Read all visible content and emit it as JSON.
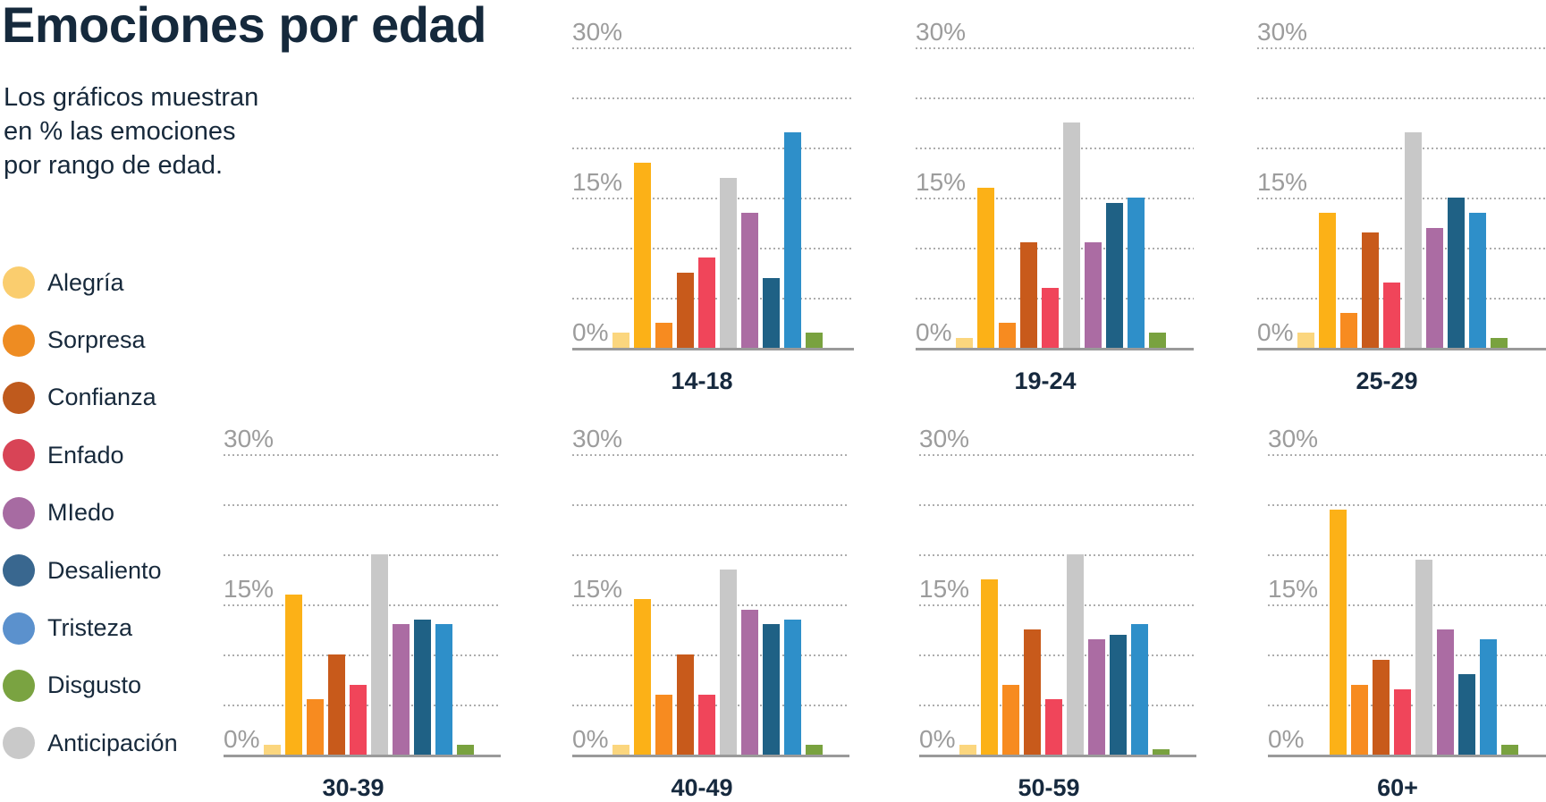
{
  "title": "Emociones por edad",
  "subtitle_lines": [
    "Los gráficos muestran",
    "en % las emociones",
    "por rango de edad."
  ],
  "legend": [
    {
      "label": "Alegría",
      "color": "#FACD6E"
    },
    {
      "label": "Sorpresa",
      "color": "#EE8C22"
    },
    {
      "label": "Confianza",
      "color": "#BF5A1D"
    },
    {
      "label": "Enfado",
      "color": "#D84456"
    },
    {
      "label": "MIedo",
      "color": "#A76BA2"
    },
    {
      "label": "Desaliento",
      "color": "#39678F"
    },
    {
      "label": "Tristeza",
      "color": "#5B91CD"
    },
    {
      "label": "Disgusto",
      "color": "#7AA341"
    },
    {
      "label": "Anticipación",
      "color": "#C9C9C9"
    }
  ],
  "chart_data": {
    "type": "bar",
    "title": "Emociones por edad",
    "subtitle": "Los gráficos muestran en % las emociones por rango de edad.",
    "unit": "%",
    "ylim": [
      0,
      30
    ],
    "gridline_step": 5,
    "grid_style": "dotted",
    "yticks": [
      {
        "value": 30,
        "label": "30%"
      },
      {
        "value": 15,
        "label": "15%"
      },
      {
        "value": 0,
        "label": "0%"
      }
    ],
    "categories": [
      "14-18",
      "19-24",
      "25-29",
      "30-39",
      "40-49",
      "50-59",
      "60+"
    ],
    "series": [
      {
        "name": "Alegría",
        "in_legend": true,
        "color": "#FBD67E",
        "values": [
          1.5,
          1,
          1.5,
          1,
          1,
          1,
          0
        ]
      },
      {
        "name": "unlabeled-amber",
        "in_legend": false,
        "color": "#FCB117",
        "values": [
          18.5,
          16,
          13.5,
          16,
          15.5,
          17.5,
          24.5
        ]
      },
      {
        "name": "Sorpresa",
        "in_legend": true,
        "color": "#F78B20",
        "values": [
          2.5,
          2.5,
          3.5,
          5.5,
          6,
          7,
          7
        ]
      },
      {
        "name": "Confianza",
        "in_legend": true,
        "color": "#C85A1B",
        "values": [
          7.5,
          10.5,
          11.5,
          10,
          10,
          12.5,
          9.5
        ]
      },
      {
        "name": "Enfado",
        "in_legend": true,
        "color": "#F0455A",
        "values": [
          9,
          6,
          6.5,
          7,
          6,
          5.5,
          6.5
        ]
      },
      {
        "name": "Anticipación",
        "in_legend": true,
        "color": "#C8C8C8",
        "values": [
          17,
          22.5,
          21.5,
          20,
          18.5,
          20,
          19.5
        ]
      },
      {
        "name": "MIedo",
        "in_legend": true,
        "color": "#AB6CA3",
        "values": [
          13.5,
          10.5,
          12,
          13,
          14.5,
          11.5,
          12.5
        ]
      },
      {
        "name": "Desaliento",
        "in_legend": true,
        "color": "#1F6185",
        "values": [
          7,
          14.5,
          15,
          13.5,
          13,
          12,
          8
        ]
      },
      {
        "name": "Tristeza",
        "in_legend": true,
        "color": "#2E8FC9",
        "values": [
          21.5,
          15,
          13.5,
          13,
          13.5,
          13,
          11.5
        ]
      },
      {
        "name": "Disgusto",
        "in_legend": true,
        "color": "#79A23F",
        "values": [
          1.5,
          1.5,
          1,
          1,
          1,
          0.5,
          1
        ]
      }
    ],
    "legend_position": "left",
    "colors": {
      "background": "#FFFFFF",
      "text_dark": "#16293E",
      "tick_label": "#9C9C9C",
      "gridline": "#ADADAD",
      "axis": "#9A9A9A"
    }
  }
}
